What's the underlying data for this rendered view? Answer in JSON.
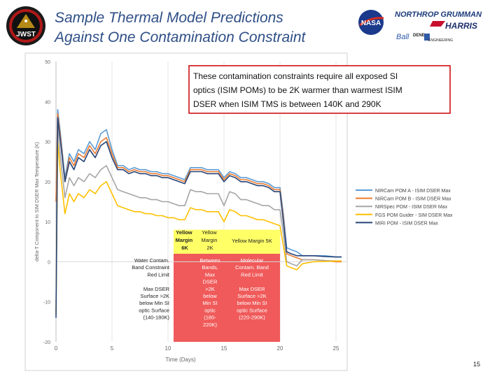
{
  "title": {
    "line1": "Sample Thermal Model Predictions",
    "line2": "Against One Contamination Constraint"
  },
  "logos": {
    "jwst": "JWST",
    "nasa": "NASA",
    "northrop": "NORTHROP GRUMMAN",
    "harris": "HARRIS",
    "ball": "Ball",
    "dene": "DENE",
    "engineering": "ENGINEERING"
  },
  "callout": {
    "line1": "These contamination constraints require all exposed SI",
    "line2": "optics (ISIM POMs) to be 2K warmer than warmest ISIM",
    "line3": "DSER when ISIM TMS is between 140K and 290K"
  },
  "bands": {
    "yellow1": [
      "Yellow",
      "Margin",
      "6K"
    ],
    "yellow2": [
      "Yellow",
      "Margin",
      "2K"
    ],
    "yellow3": [
      "Yellow Margin 5K"
    ],
    "red2": [
      "Between",
      "Bands,",
      "Max",
      "DSER",
      ">2K",
      "below",
      "Min SI",
      "optic",
      "(180-",
      "220K)"
    ],
    "red3": [
      "Molecular",
      "Contam. Band",
      "Red Limit",
      "",
      "Max DSER",
      "Surface >2K",
      "below Min SI",
      "optic Surface",
      "(220-290K)"
    ]
  },
  "side_note": [
    "Water Contam.",
    "Band Constraint",
    "Red Limit",
    "",
    "Max DSER",
    "Surface >2K",
    "below Min SI",
    "optic Surface",
    "(140-180K)"
  ],
  "chart_data": {
    "type": "line",
    "xlabel": "Time (Days)",
    "ylabel": "delta-T Component to SIM DSER Max Temperature (K)",
    "xlim": [
      0,
      26
    ],
    "ylim": [
      -20,
      50
    ],
    "xticks": [
      0,
      5,
      10,
      15,
      20,
      25
    ],
    "yticks": [
      -20,
      -10,
      0,
      10,
      20,
      30,
      40,
      50
    ],
    "grid": "vertical",
    "legend": "right",
    "series": [
      {
        "name": "NIRCam POM A - ISIM DSER Max",
        "color": "#5b9bd5",
        "x": [
          0,
          0.15,
          0.4,
          0.8,
          1.2,
          1.6,
          2.0,
          2.5,
          3.0,
          3.5,
          4.0,
          4.5,
          5.0,
          5.5,
          6.0,
          6.5,
          7.0,
          7.5,
          8.0,
          8.5,
          9.0,
          9.5,
          10.0,
          10.5,
          11.0,
          11.5,
          12.0,
          12.5,
          13.0,
          13.5,
          14.0,
          14.5,
          15.0,
          15.5,
          16.0,
          16.5,
          17.0,
          17.5,
          18.0,
          18.5,
          19.0,
          19.5,
          20.0,
          20.3,
          20.6,
          21.0,
          21.5,
          22.0,
          23.0,
          24.0,
          25.0,
          25.5
        ],
        "y": [
          15,
          38,
          32,
          21,
          27,
          25,
          28,
          27,
          30,
          28,
          32,
          33,
          28,
          24,
          24,
          23,
          23.5,
          23,
          23,
          22.5,
          22.5,
          22,
          22,
          21.5,
          21,
          20.5,
          23.5,
          23.5,
          23.5,
          23,
          23,
          23,
          21,
          22.5,
          22,
          21,
          21,
          20.5,
          20,
          20,
          19.5,
          18.5,
          18.5,
          12,
          3.5,
          3,
          2.5,
          1.5,
          1.5,
          1.5,
          1.2,
          1.2
        ]
      },
      {
        "name": "NIRCam POM B - ISIM DSER Max",
        "color": "#ed7d31",
        "x": [
          0,
          0.15,
          0.4,
          0.8,
          1.2,
          1.6,
          2.0,
          2.5,
          3.0,
          3.5,
          4.0,
          4.5,
          5.0,
          5.5,
          6.0,
          6.5,
          7.0,
          7.5,
          8.0,
          8.5,
          9.0,
          9.5,
          10.0,
          10.5,
          11.0,
          11.5,
          12.0,
          12.5,
          13.0,
          13.5,
          14.0,
          14.5,
          15.0,
          15.5,
          16.0,
          16.5,
          17.0,
          17.5,
          18.0,
          18.5,
          19.0,
          19.5,
          20.0,
          20.3,
          20.6,
          21.0,
          21.5,
          22.0,
          23.0,
          24.0,
          25.0,
          25.5
        ],
        "y": [
          15,
          37,
          31,
          20,
          26,
          24,
          27,
          26,
          29,
          27,
          30,
          31,
          27,
          23.5,
          23.5,
          22.5,
          23,
          22.5,
          22.5,
          22,
          22,
          21.5,
          21.5,
          21,
          20.5,
          20,
          23,
          23,
          23,
          22.5,
          22.5,
          22.5,
          20.5,
          22,
          21.5,
          20.5,
          20.5,
          20,
          19.5,
          19.5,
          19,
          18,
          18,
          11,
          2,
          1.5,
          1,
          0.5,
          0.5,
          0.3,
          0,
          0
        ]
      },
      {
        "name": "NIRSpec POM - ISIM DSER Max",
        "color": "#a5a5a5",
        "x": [
          0,
          0.15,
          0.4,
          0.8,
          1.2,
          1.6,
          2.0,
          2.5,
          3.0,
          3.5,
          4.0,
          4.5,
          5.0,
          5.5,
          6.0,
          6.5,
          7.0,
          7.5,
          8.0,
          8.5,
          9.0,
          9.5,
          10.0,
          10.5,
          11.0,
          11.5,
          12.0,
          12.5,
          13.0,
          13.5,
          14.0,
          14.5,
          15.0,
          15.5,
          16.0,
          16.5,
          17.0,
          17.5,
          18.0,
          18.5,
          19.0,
          19.5,
          20.0,
          20.3,
          20.6,
          21.0,
          21.5,
          22.0,
          23.0,
          24.0,
          25.0,
          25.5
        ],
        "y": [
          -13,
          34,
          26,
          16,
          21,
          19,
          21,
          20,
          22,
          21,
          23,
          24,
          21,
          18,
          17.5,
          17,
          16.5,
          16,
          16,
          15.5,
          15.5,
          15,
          15,
          14.5,
          14,
          14,
          18,
          17.5,
          17.5,
          17,
          17,
          17,
          14,
          17.5,
          17,
          15.5,
          15.5,
          15,
          14.5,
          14,
          14,
          13,
          13,
          7,
          0,
          -0.5,
          -1,
          0.5,
          0.5,
          0.3,
          0.2,
          0.2
        ]
      },
      {
        "name": "FGS POM Guider - SIM DSER Max",
        "color": "#ffc000",
        "x": [
          0,
          0.15,
          0.4,
          0.8,
          1.2,
          1.6,
          2.0,
          2.5,
          3.0,
          3.5,
          4.0,
          4.5,
          5.0,
          5.5,
          6.0,
          6.5,
          7.0,
          7.5,
          8.0,
          8.5,
          9.0,
          9.5,
          10.0,
          10.5,
          11.0,
          11.5,
          12.0,
          12.5,
          13.0,
          13.5,
          14.0,
          14.5,
          15.0,
          15.5,
          16.0,
          16.5,
          17.0,
          17.5,
          18.0,
          18.5,
          19.0,
          19.5,
          20.0,
          20.3,
          20.6,
          21.0,
          21.5,
          22.0,
          23.0,
          24.0,
          25.0,
          25.5
        ],
        "y": [
          -13,
          30,
          22,
          12,
          17,
          15,
          17,
          16,
          18,
          17,
          19,
          20,
          17,
          14,
          13.5,
          13,
          12.5,
          12.5,
          12,
          12,
          11.5,
          11.5,
          11,
          11,
          10.5,
          10.5,
          13.5,
          13,
          13,
          12.5,
          12.5,
          12.5,
          10,
          13,
          12.5,
          11.5,
          11.5,
          11,
          10.5,
          10.5,
          10,
          9.5,
          9,
          4,
          -1,
          -1.5,
          -2,
          -0.5,
          0,
          0.1,
          0.2,
          0.2
        ]
      },
      {
        "name": "MIRI POM - ISIM DSER Max",
        "color": "#264478",
        "x": [
          0,
          0.15,
          0.4,
          0.8,
          1.2,
          1.6,
          2.0,
          2.5,
          3.0,
          3.5,
          4.0,
          4.5,
          5.0,
          5.5,
          6.0,
          6.5,
          7.0,
          7.5,
          8.0,
          8.5,
          9.0,
          9.5,
          10.0,
          10.5,
          11.0,
          11.5,
          12.0,
          12.5,
          13.0,
          13.5,
          14.0,
          14.5,
          15.0,
          15.5,
          16.0,
          16.5,
          17.0,
          17.5,
          18.0,
          18.5,
          19.0,
          19.5,
          20.0,
          20.3,
          20.6,
          21.0,
          21.5,
          22.0,
          23.0,
          24.0,
          25.0,
          25.5
        ],
        "y": [
          -14,
          36,
          30,
          20,
          25,
          23,
          26,
          25,
          28,
          26,
          29,
          30,
          26,
          23,
          23,
          22,
          22.5,
          22,
          22,
          21.5,
          21.5,
          21,
          21,
          20.5,
          20,
          19.5,
          22.5,
          22.5,
          22.5,
          22,
          22,
          22,
          20,
          21.5,
          21,
          20,
          20,
          19.5,
          19,
          19,
          18.5,
          17.5,
          17.5,
          10,
          2.5,
          2,
          1.5,
          1.5,
          1.5,
          1.3,
          1.2,
          1.2
        ]
      }
    ],
    "shaded_regions": [
      {
        "x": [
          10.5,
          14.5
        ],
        "y_top": 8,
        "y_mid": 2,
        "y_bottom": -20
      },
      {
        "x": [
          12.5,
          15
        ],
        "y_top": 8,
        "y_mid": 2,
        "y_bottom": -20
      },
      {
        "x": [
          15,
          20
        ],
        "y_top": 8,
        "y_mid": 2,
        "y_bottom": -20
      }
    ]
  },
  "page_number": "15"
}
